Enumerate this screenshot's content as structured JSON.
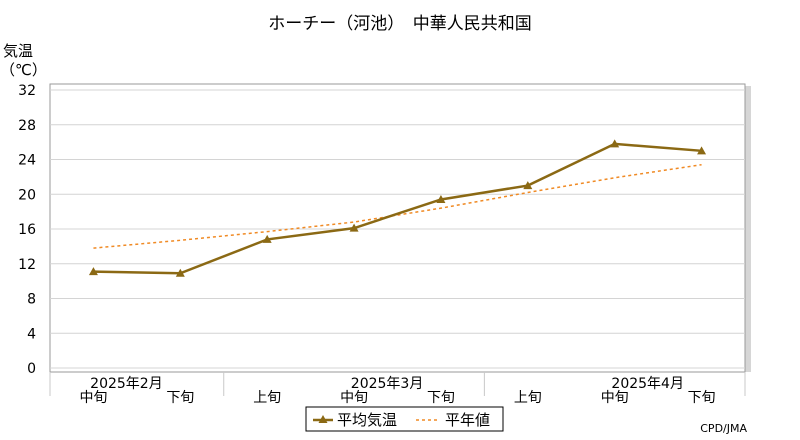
{
  "chart_data": {
    "type": "line",
    "title": "ホーチー（河池）　中華人民共和国",
    "ylabel_line1": "気温",
    "ylabel_line2": "（℃）",
    "ylim": [
      0,
      32
    ],
    "yticks": [
      0,
      4,
      8,
      12,
      16,
      20,
      24,
      28,
      32
    ],
    "grid": true,
    "categories": [
      "中旬",
      "下旬",
      "上旬",
      "中旬",
      "下旬",
      "上旬",
      "中旬",
      "下旬"
    ],
    "month_labels": [
      {
        "label": "2025年2月",
        "index": 0
      },
      {
        "label": "2025年3月",
        "index": 3
      },
      {
        "label": "2025年4月",
        "index": 6
      }
    ],
    "series": [
      {
        "name": "平均気温",
        "color": "#8b6914",
        "style": "solid",
        "marker": "triangle",
        "values": [
          11.1,
          10.9,
          14.8,
          16.1,
          19.4,
          21.0,
          25.8,
          25.0
        ]
      },
      {
        "name": "平年値",
        "color": "#f08a24",
        "style": "dashed",
        "values": [
          13.8,
          14.7,
          15.7,
          16.8,
          18.4,
          20.2,
          21.9,
          23.4
        ]
      }
    ],
    "legend_position": "bottom-center",
    "credit": "CPD/JMA"
  }
}
